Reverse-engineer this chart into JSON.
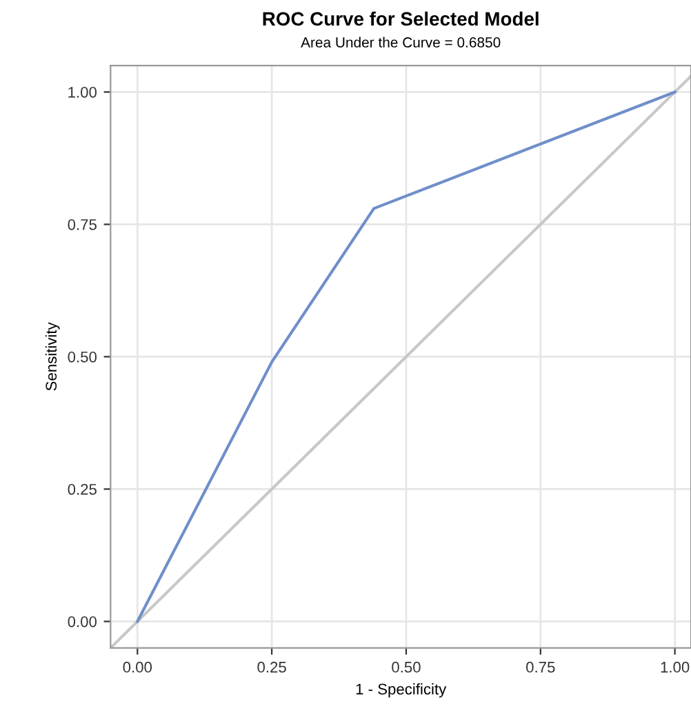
{
  "chart_data": {
    "type": "line",
    "title": "ROC Curve for Selected Model",
    "subtitle": "Area Under the Curve = 0.6850",
    "xlabel": "1 - Specificity",
    "ylabel": "Sensitivity",
    "series": [
      {
        "color": "#c8c8c8",
        "x": [
          -0.05,
          1.03
        ],
        "values": [
          -0.05,
          1.03
        ]
      },
      {
        "color": "#6f8fca",
        "x": [
          0.0,
          0.25,
          0.44,
          1.0
        ],
        "values": [
          0.0,
          0.49,
          0.78,
          1.0
        ]
      }
    ],
    "xlim": [
      -0.05,
      1.03
    ],
    "ylim": [
      -0.05,
      1.05
    ],
    "xticks": [
      {
        "value": 0,
        "label": "0.00"
      },
      {
        "value": 0.25,
        "label": "0.25"
      },
      {
        "value": 0.5,
        "label": "0.50"
      },
      {
        "value": 0.75,
        "label": "0.75"
      },
      {
        "value": 1,
        "label": "1.00"
      }
    ],
    "yticks": [
      {
        "value": 0,
        "label": "0.00"
      },
      {
        "value": 0.25,
        "label": "0.25"
      },
      {
        "value": 0.5,
        "label": "0.50"
      },
      {
        "value": 0.75,
        "label": "0.75"
      },
      {
        "value": 1,
        "label": "1.00"
      }
    ],
    "grid": true,
    "marker": "none",
    "line_style": "solid"
  }
}
